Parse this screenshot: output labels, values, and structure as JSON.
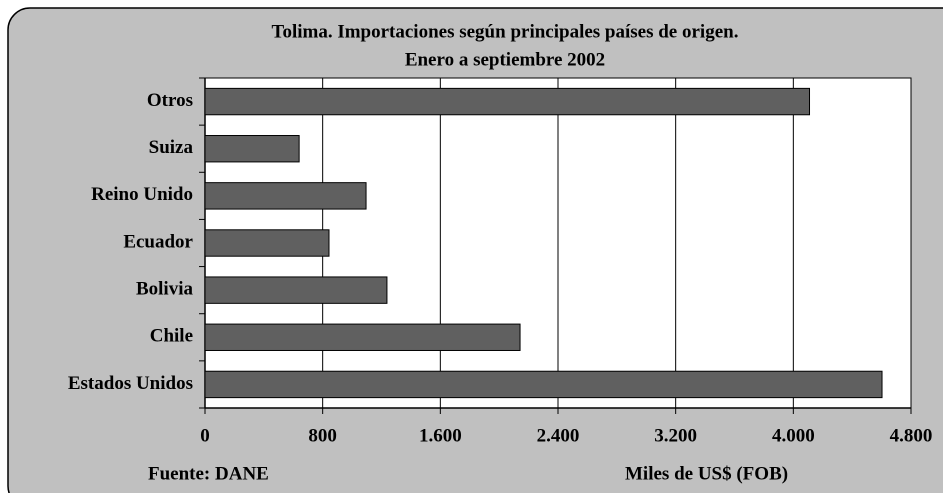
{
  "chart_data": {
    "type": "bar",
    "orientation": "horizontal",
    "title": "Tolima.  Importaciones según principales países de origen.",
    "subtitle": "Enero a septiembre 2002",
    "source": "Fuente: DANE",
    "x_label": "Miles de US$ (FOB)",
    "categories": [
      "Otros",
      "Suiza",
      "Reino Unido",
      "Ecuador",
      "Bolivia",
      "Chile",
      "Estados Unidos"
    ],
    "values": [
      4110,
      640,
      1095,
      843,
      1237,
      2142,
      4603
    ],
    "color": "#606060",
    "xlim": [
      0,
      4800
    ],
    "xticks": [
      0,
      800,
      {
        "value": 1600,
        "label": "1.600"
      },
      {
        "value": 2400,
        "label": "2.400"
      },
      {
        "value": 3200,
        "label": "3.200"
      },
      {
        "value": 4000,
        "label": "4.000"
      },
      {
        "value": 4800,
        "label": "4.800"
      }
    ],
    "grid": true
  }
}
